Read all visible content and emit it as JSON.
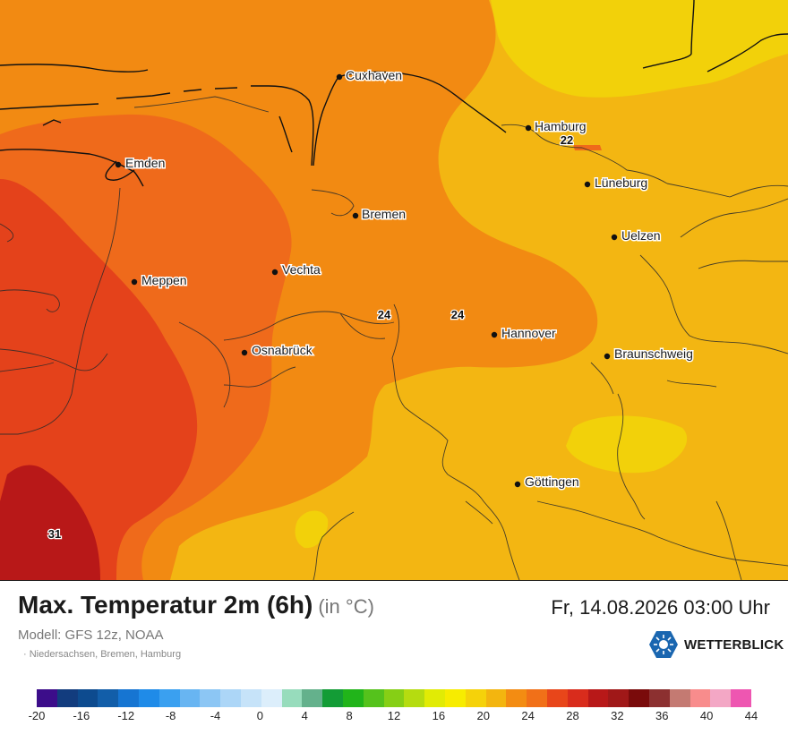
{
  "map": {
    "cities": [
      {
        "name": "Cuxhaven"
      },
      {
        "name": "Hamburg"
      },
      {
        "name": "Emden"
      },
      {
        "name": "Lüneburg"
      },
      {
        "name": "Bremen"
      },
      {
        "name": "Uelzen"
      },
      {
        "name": "Vechta"
      },
      {
        "name": "Meppen"
      },
      {
        "name": "Hannover"
      },
      {
        "name": "Osnabrück"
      },
      {
        "name": "Braunschweig"
      },
      {
        "name": "Göttingen"
      }
    ],
    "value_labels": [
      "22",
      "24",
      "24",
      "31"
    ]
  },
  "header": {
    "title": "Max. Temperatur 2m (6h)",
    "unit": "(in °C)",
    "datetime": "Fr, 14.08.2026 03:00 Uhr",
    "model": "Modell: GFS 12z, NOAA",
    "region": "· Niedersachsen, Bremen, Hamburg"
  },
  "logo": {
    "text": "WETTERBLICK",
    "icon": "snowflake-sun-icon",
    "color": "#1a66b0"
  },
  "legend": {
    "colors": [
      "#3c0d8a",
      "#123c7e",
      "#0d4b8f",
      "#125ea9",
      "#1675d2",
      "#1f8be8",
      "#3aa0f0",
      "#68b5f2",
      "#8cc6f4",
      "#acd6f7",
      "#c6e3f9",
      "#dceefb",
      "#97dcbc",
      "#64b18c",
      "#139c36",
      "#21b41a",
      "#55c21c",
      "#86cf15",
      "#b5dc10",
      "#e1eb05",
      "#f7ec00",
      "#f5d20a",
      "#f3b50f",
      "#f38c12",
      "#f17018",
      "#e8461a",
      "#d92c1c",
      "#b81818",
      "#a01818",
      "#7a0b0b",
      "#8c3030",
      "#c47a72",
      "#f88c8c",
      "#f3a7c5",
      "#ee56b1"
    ],
    "ticks": [
      "-20",
      "-16",
      "-12",
      "-8",
      "-4",
      "0",
      "4",
      "8",
      "12",
      "16",
      "20",
      "24",
      "28",
      "32",
      "36",
      "40",
      "44"
    ]
  }
}
